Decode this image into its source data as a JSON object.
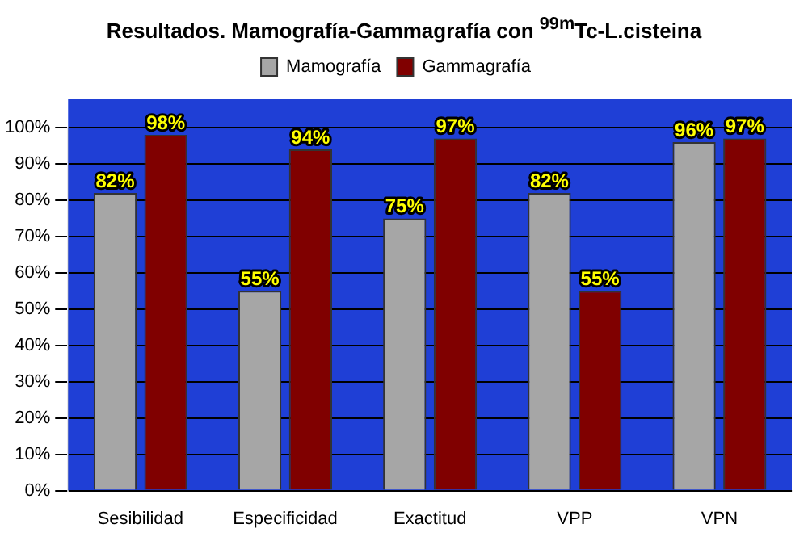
{
  "chart_data": {
    "type": "bar",
    "title": "Resultados. Mamografía-Gammagrafía con $^{99m}$Tc-L.cisteina",
    "categories": [
      "Sesibilidad",
      "Especificidad",
      "Exactitud",
      "VPP",
      "VPN"
    ],
    "series": [
      {
        "name": "Mamografía",
        "color": "#a6a6a6",
        "values": [
          82,
          55,
          75,
          82,
          96
        ],
        "value_labels": [
          "82%",
          "55%",
          "75%",
          "82%",
          "96%"
        ]
      },
      {
        "name": "Gammagrafía",
        "color": "#800000",
        "values": [
          98,
          94,
          97,
          55,
          97
        ],
        "value_labels": [
          "98%",
          "94%",
          "97%",
          "55%",
          "97%"
        ]
      }
    ],
    "ylim": [
      0,
      100
    ],
    "yticks": [
      {
        "value": 0,
        "label": "0%"
      },
      {
        "value": 10,
        "label": "10%"
      },
      {
        "value": 20,
        "label": "20%"
      },
      {
        "value": 30,
        "label": "30%"
      },
      {
        "value": 40,
        "label": "40%"
      },
      {
        "value": 50,
        "label": "50%"
      },
      {
        "value": 60,
        "label": "60%"
      },
      {
        "value": 70,
        "label": "70%"
      },
      {
        "value": 80,
        "label": "80%"
      },
      {
        "value": 90,
        "label": "90%"
      },
      {
        "value": 100,
        "label": "100%"
      }
    ],
    "grid": "y",
    "legend": "top"
  }
}
